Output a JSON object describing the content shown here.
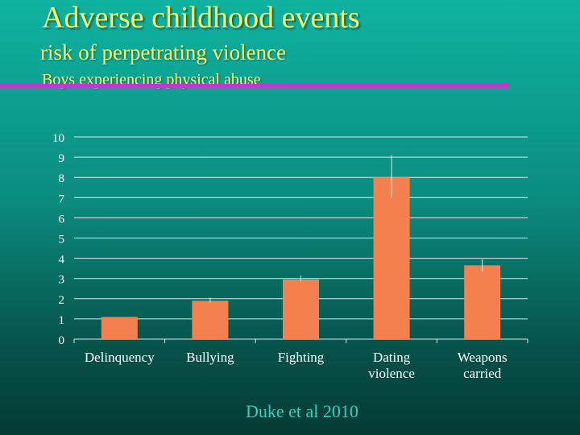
{
  "slide": {
    "title": "Adverse childhood events",
    "subtitle": "risk of perpetrating violence",
    "subtitle2": "Boys experiencing physical abuse",
    "citation": "Duke et al 2010"
  },
  "colors": {
    "title": "#ffff66",
    "accent_rule": "#cc33cc",
    "bar": "#f4804f",
    "gridline": "#d9ece9",
    "tick_text": "#ffffff",
    "citation": "#2fd4c0"
  },
  "chart_data": {
    "type": "bar",
    "categories": [
      [
        "Delinquency"
      ],
      [
        "Bullying"
      ],
      [
        "Fighting"
      ],
      [
        "Dating",
        "violence"
      ],
      [
        "Weapons",
        "carried"
      ]
    ],
    "values": [
      1.1,
      1.9,
      2.95,
      8.0,
      3.65
    ],
    "error_bars": [
      {
        "low": 1.1,
        "high": 1.1
      },
      {
        "low": 1.8,
        "high": 2.05
      },
      {
        "low": 2.8,
        "high": 3.15
      },
      {
        "low": 7.0,
        "high": 9.1
      },
      {
        "low": 3.35,
        "high": 3.95
      }
    ],
    "title": "",
    "xlabel": "",
    "ylabel": "",
    "ylim": [
      0,
      10
    ],
    "yticks": [
      "0",
      "1",
      "2",
      "3",
      "4",
      "5",
      "6",
      "7",
      "8",
      "9",
      "10"
    ],
    "grid": true,
    "legend": "none"
  }
}
